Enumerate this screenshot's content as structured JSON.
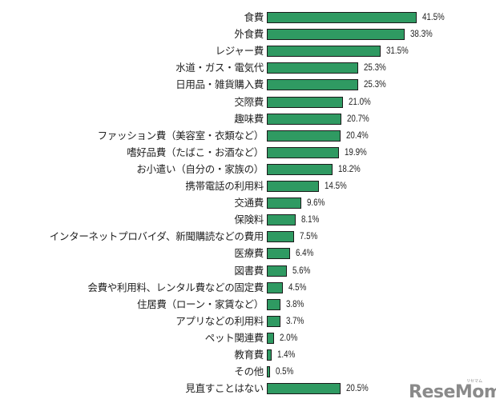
{
  "chart_data": {
    "type": "bar",
    "orientation": "horizontal",
    "title": "",
    "xlabel": "",
    "ylabel": "",
    "value_suffix": "%",
    "bar_color": "#2f9a62",
    "bar_border_color": "#1a1a1a",
    "grid": false,
    "legend": null,
    "categories": [
      "食費",
      "外食費",
      "レジャー費",
      "水道・ガス・電気代",
      "日用品・雑貨購入費",
      "交際費",
      "趣味費",
      "ファッション費（美容室・衣類など）",
      "嗜好品費（たばこ・お酒など）",
      "お小遣い（自分の・家族の）",
      "携帯電話の利用料",
      "交通費",
      "保険料",
      "インターネットプロバイダ、新聞購読などの費用",
      "医療費",
      "図書費",
      "会費や利用料、レンタル費などの固定費",
      "住居費（ローン・家賃など）",
      "アプリなどの利用料",
      "ペット関連費",
      "教育費",
      "その他",
      "見直すことはない"
    ],
    "values": [
      41.5,
      38.3,
      31.5,
      25.3,
      25.3,
      21.0,
      20.7,
      20.4,
      19.9,
      18.2,
      14.5,
      9.6,
      8.1,
      7.5,
      6.4,
      5.6,
      4.5,
      3.8,
      3.7,
      2.0,
      1.4,
      0.5,
      20.5
    ],
    "value_labels": [
      "41.5%",
      "38.3%",
      "31.5%",
      "25.3%",
      "25.3%",
      "21.0%",
      "20.7%",
      "20.4%",
      "19.9%",
      "18.2%",
      "14.5%",
      "9.6%",
      "8.1%",
      "7.5%",
      "6.4%",
      "5.6%",
      "4.5%",
      "3.8%",
      "3.7%",
      "2.0%",
      "1.4%",
      "0.5%",
      "20.5%"
    ]
  },
  "watermark": {
    "logo_text": "ReseMom",
    "logo_subtext": "リセマム"
  }
}
